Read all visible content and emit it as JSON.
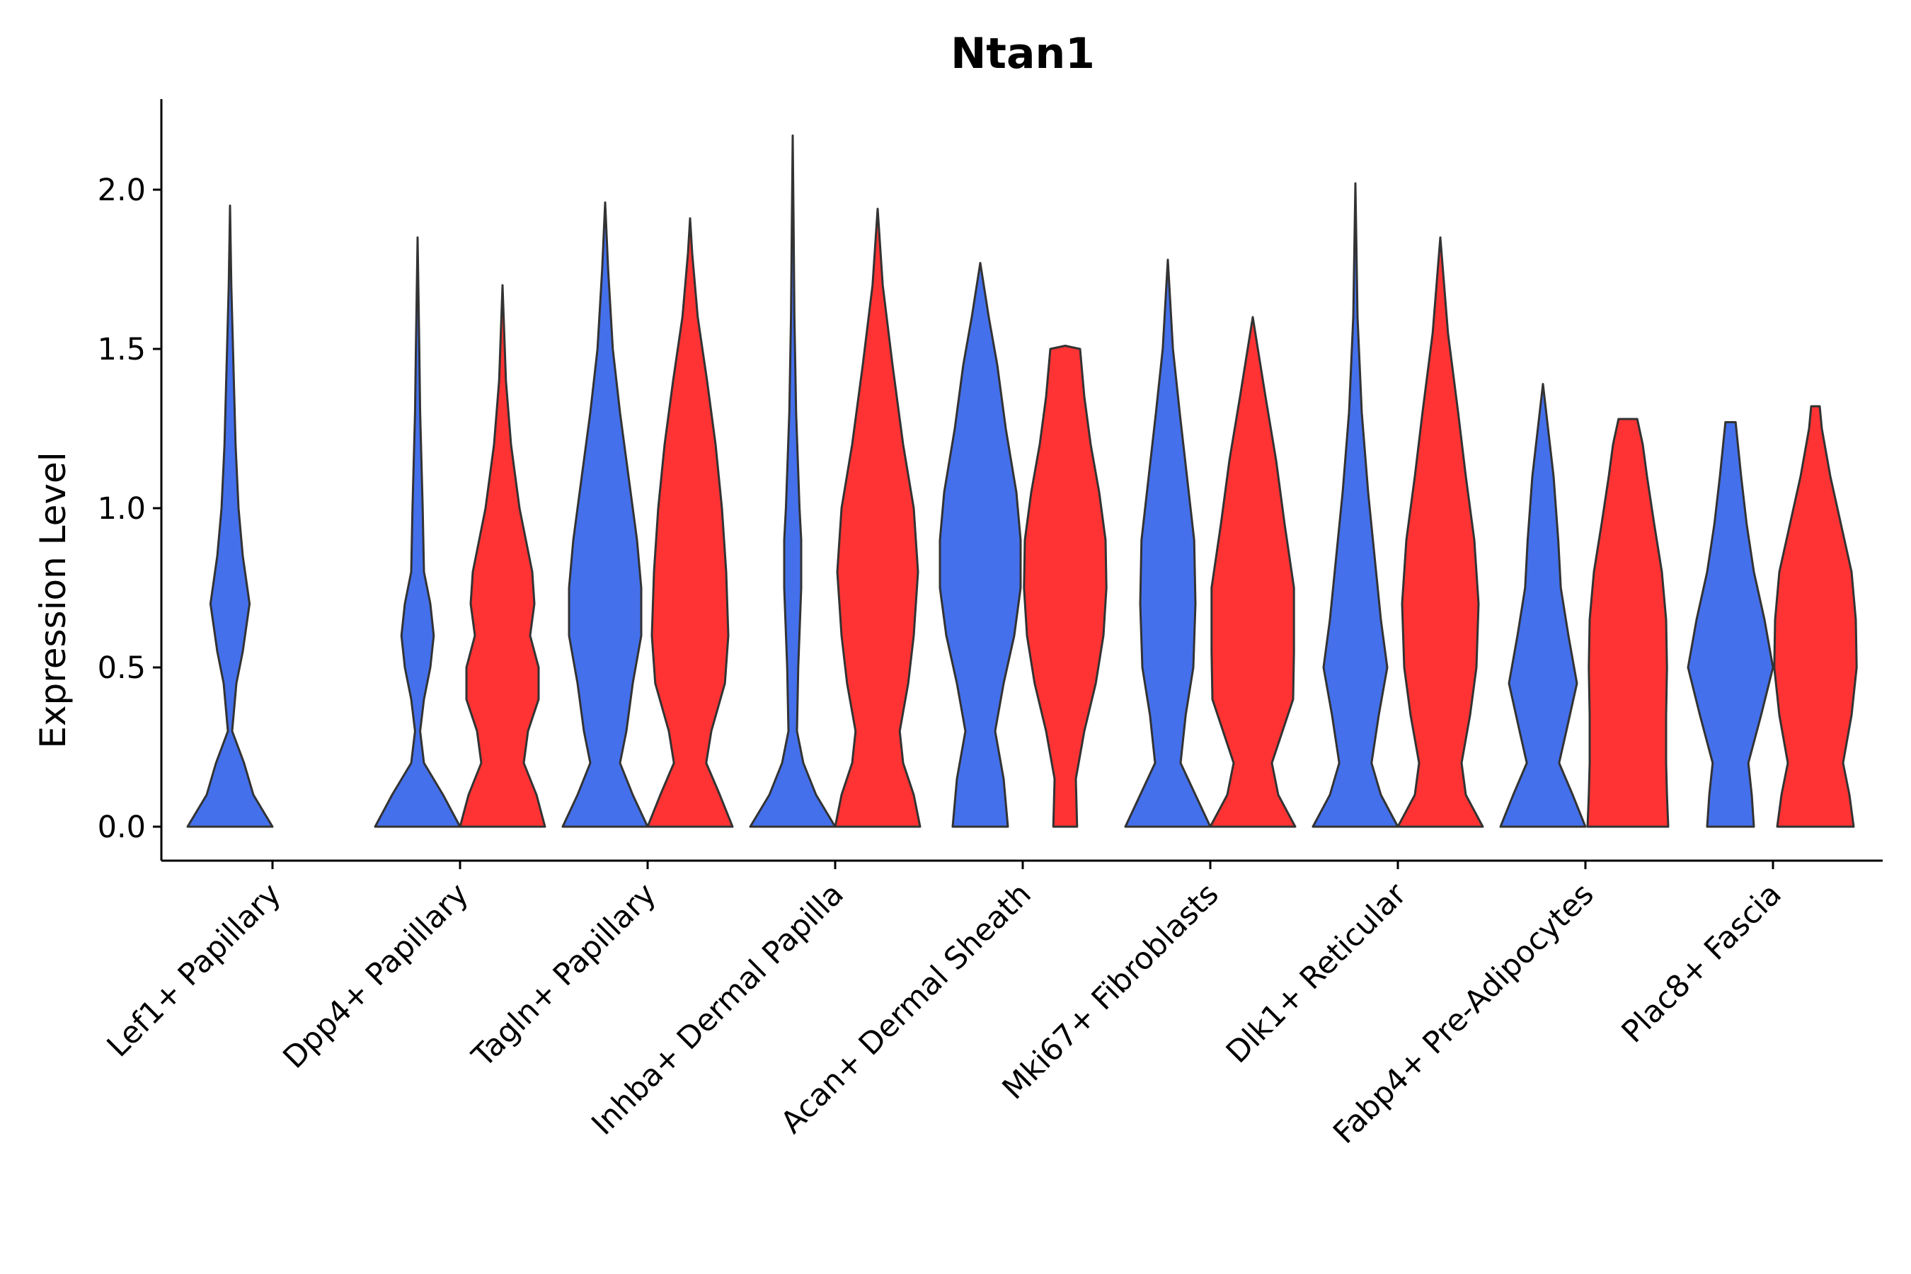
{
  "chart_data": {
    "type": "violin",
    "title": "Ntan1",
    "xlabel": "",
    "ylabel": "Expression Level",
    "ylim": [
      -0.1,
      2.28
    ],
    "yticks": [
      0.0,
      0.5,
      1.0,
      1.5,
      2.0
    ],
    "ytick_labels": [
      "0.0",
      "0.5",
      "1.0",
      "1.5",
      "2.0"
    ],
    "grid": false,
    "legend": "none",
    "colors": {
      "blue": "#4470ec",
      "red": "#ff3333",
      "outline": "#333333"
    },
    "categories": [
      "Lef1+ Papillary",
      "Dpp4+ Papillary",
      "Tagln+ Papillary",
      "Inhba+ Dermal Papilla",
      "Acan+ Dermal Sheath",
      "Mki67+ Fibroblasts",
      "Dlk1+ Reticular",
      "Fabp4+ Pre-Adipocytes",
      "Plac8+ Fascia"
    ],
    "violins": [
      {
        "category": "Lef1+ Papillary",
        "group": "blue",
        "max": 1.95,
        "profile": [
          [
            0,
            1.0
          ],
          [
            0.1,
            0.55
          ],
          [
            0.2,
            0.33
          ],
          [
            0.3,
            0.05
          ],
          [
            0.45,
            0.15
          ],
          [
            0.55,
            0.3
          ],
          [
            0.7,
            0.46
          ],
          [
            0.85,
            0.3
          ],
          [
            1.0,
            0.2
          ],
          [
            1.2,
            0.13
          ],
          [
            1.5,
            0.07
          ],
          [
            1.7,
            0.03
          ],
          [
            1.95,
            0
          ]
        ]
      },
      {
        "category": "Dpp4+ Papillary",
        "group": "blue",
        "max": 1.85,
        "profile": [
          [
            0,
            1.0
          ],
          [
            0.1,
            0.6
          ],
          [
            0.2,
            0.15
          ],
          [
            0.3,
            0.06
          ],
          [
            0.4,
            0.15
          ],
          [
            0.5,
            0.3
          ],
          [
            0.6,
            0.38
          ],
          [
            0.7,
            0.3
          ],
          [
            0.8,
            0.15
          ],
          [
            1.0,
            0.12
          ],
          [
            1.3,
            0.06
          ],
          [
            1.5,
            0.04
          ],
          [
            1.85,
            0
          ]
        ]
      },
      {
        "category": "Dpp4+ Papillary",
        "group": "red",
        "max": 1.7,
        "profile": [
          [
            0,
            1.0
          ],
          [
            0.1,
            0.8
          ],
          [
            0.2,
            0.5
          ],
          [
            0.3,
            0.6
          ],
          [
            0.4,
            0.85
          ],
          [
            0.5,
            0.85
          ],
          [
            0.6,
            0.65
          ],
          [
            0.7,
            0.75
          ],
          [
            0.8,
            0.7
          ],
          [
            1.0,
            0.4
          ],
          [
            1.2,
            0.2
          ],
          [
            1.4,
            0.08
          ],
          [
            1.7,
            0
          ]
        ]
      },
      {
        "category": "Tagln+ Papillary",
        "group": "blue",
        "max": 1.96,
        "profile": [
          [
            0,
            1.0
          ],
          [
            0.1,
            0.65
          ],
          [
            0.2,
            0.35
          ],
          [
            0.3,
            0.5
          ],
          [
            0.45,
            0.65
          ],
          [
            0.6,
            0.85
          ],
          [
            0.75,
            0.85
          ],
          [
            0.9,
            0.75
          ],
          [
            1.1,
            0.55
          ],
          [
            1.3,
            0.35
          ],
          [
            1.5,
            0.18
          ],
          [
            1.75,
            0.07
          ],
          [
            1.96,
            0
          ]
        ]
      },
      {
        "category": "Tagln+ Papillary",
        "group": "red",
        "max": 1.91,
        "profile": [
          [
            0,
            1.0
          ],
          [
            0.1,
            0.7
          ],
          [
            0.2,
            0.38
          ],
          [
            0.3,
            0.5
          ],
          [
            0.45,
            0.82
          ],
          [
            0.6,
            0.9
          ],
          [
            0.8,
            0.85
          ],
          [
            1.0,
            0.75
          ],
          [
            1.2,
            0.6
          ],
          [
            1.4,
            0.4
          ],
          [
            1.6,
            0.18
          ],
          [
            1.8,
            0.05
          ],
          [
            1.91,
            0
          ]
        ]
      },
      {
        "category": "Inhba+ Dermal Papilla",
        "group": "blue",
        "max": 2.17,
        "profile": [
          [
            0,
            1.0
          ],
          [
            0.1,
            0.55
          ],
          [
            0.2,
            0.25
          ],
          [
            0.3,
            0.1
          ],
          [
            0.5,
            0.13
          ],
          [
            0.75,
            0.2
          ],
          [
            0.9,
            0.2
          ],
          [
            1.0,
            0.16
          ],
          [
            1.3,
            0.08
          ],
          [
            1.6,
            0.04
          ],
          [
            1.9,
            0.02
          ],
          [
            2.17,
            0
          ]
        ]
      },
      {
        "category": "Inhba+ Dermal Papilla",
        "group": "red",
        "max": 1.94,
        "profile": [
          [
            0,
            1.0
          ],
          [
            0.1,
            0.85
          ],
          [
            0.2,
            0.6
          ],
          [
            0.3,
            0.52
          ],
          [
            0.45,
            0.72
          ],
          [
            0.6,
            0.85
          ],
          [
            0.8,
            0.95
          ],
          [
            1.0,
            0.85
          ],
          [
            1.2,
            0.6
          ],
          [
            1.45,
            0.35
          ],
          [
            1.7,
            0.12
          ],
          [
            1.94,
            0
          ]
        ]
      },
      {
        "category": "Acan+ Dermal Sheath",
        "group": "blue",
        "max": 1.77,
        "profile": [
          [
            0,
            0.65
          ],
          [
            0.15,
            0.55
          ],
          [
            0.3,
            0.35
          ],
          [
            0.45,
            0.55
          ],
          [
            0.6,
            0.8
          ],
          [
            0.75,
            0.95
          ],
          [
            0.9,
            0.95
          ],
          [
            1.05,
            0.85
          ],
          [
            1.25,
            0.6
          ],
          [
            1.45,
            0.4
          ],
          [
            1.6,
            0.2
          ],
          [
            1.77,
            0
          ]
        ]
      },
      {
        "category": "Acan+ Dermal Sheath",
        "group": "red",
        "max": 1.51,
        "profile": [
          [
            0,
            0.28
          ],
          [
            0.15,
            0.25
          ],
          [
            0.3,
            0.45
          ],
          [
            0.45,
            0.72
          ],
          [
            0.6,
            0.9
          ],
          [
            0.75,
            0.97
          ],
          [
            0.9,
            0.95
          ],
          [
            1.05,
            0.8
          ],
          [
            1.2,
            0.6
          ],
          [
            1.35,
            0.45
          ],
          [
            1.5,
            0.35
          ],
          [
            1.51,
            0
          ]
        ]
      },
      {
        "category": "Mki67+ Fibroblasts",
        "group": "blue",
        "max": 1.78,
        "profile": [
          [
            0,
            1.0
          ],
          [
            0.1,
            0.65
          ],
          [
            0.2,
            0.3
          ],
          [
            0.35,
            0.42
          ],
          [
            0.5,
            0.6
          ],
          [
            0.7,
            0.65
          ],
          [
            0.9,
            0.62
          ],
          [
            1.1,
            0.45
          ],
          [
            1.3,
            0.28
          ],
          [
            1.5,
            0.12
          ],
          [
            1.78,
            0
          ]
        ]
      },
      {
        "category": "Mki67+ Fibroblasts",
        "group": "red",
        "max": 1.61,
        "profile": [
          [
            0,
            1.0
          ],
          [
            0.1,
            0.6
          ],
          [
            0.2,
            0.45
          ],
          [
            0.3,
            0.7
          ],
          [
            0.4,
            0.95
          ],
          [
            0.55,
            0.97
          ],
          [
            0.75,
            0.97
          ],
          [
            0.95,
            0.75
          ],
          [
            1.15,
            0.55
          ],
          [
            1.35,
            0.3
          ],
          [
            1.6,
            0
          ]
        ]
      },
      {
        "category": "Dlk1+ Reticular",
        "group": "blue",
        "max": 2.02,
        "profile": [
          [
            0,
            1.0
          ],
          [
            0.1,
            0.6
          ],
          [
            0.2,
            0.38
          ],
          [
            0.35,
            0.55
          ],
          [
            0.5,
            0.75
          ],
          [
            0.65,
            0.6
          ],
          [
            0.85,
            0.45
          ],
          [
            1.05,
            0.3
          ],
          [
            1.3,
            0.15
          ],
          [
            1.6,
            0.05
          ],
          [
            2.02,
            0
          ]
        ]
      },
      {
        "category": "Dlk1+ Reticular",
        "group": "red",
        "max": 1.85,
        "profile": [
          [
            0,
            1.0
          ],
          [
            0.1,
            0.6
          ],
          [
            0.2,
            0.5
          ],
          [
            0.35,
            0.7
          ],
          [
            0.5,
            0.85
          ],
          [
            0.7,
            0.9
          ],
          [
            0.9,
            0.8
          ],
          [
            1.1,
            0.6
          ],
          [
            1.3,
            0.42
          ],
          [
            1.55,
            0.18
          ],
          [
            1.85,
            0
          ]
        ]
      },
      {
        "category": "Fabp4+ Pre-Adipocytes",
        "group": "blue",
        "max": 1.39,
        "profile": [
          [
            0,
            1.0
          ],
          [
            0.1,
            0.7
          ],
          [
            0.2,
            0.38
          ],
          [
            0.3,
            0.55
          ],
          [
            0.45,
            0.8
          ],
          [
            0.6,
            0.6
          ],
          [
            0.75,
            0.42
          ],
          [
            0.9,
            0.36
          ],
          [
            1.1,
            0.25
          ],
          [
            1.25,
            0.12
          ],
          [
            1.39,
            0
          ]
        ]
      },
      {
        "category": "Fabp4+ Pre-Adipocytes",
        "group": "red",
        "max": 1.28,
        "profile": [
          [
            0,
            0.95
          ],
          [
            0.1,
            0.92
          ],
          [
            0.2,
            0.9
          ],
          [
            0.35,
            0.9
          ],
          [
            0.5,
            0.92
          ],
          [
            0.65,
            0.9
          ],
          [
            0.8,
            0.8
          ],
          [
            0.95,
            0.62
          ],
          [
            1.1,
            0.45
          ],
          [
            1.2,
            0.35
          ],
          [
            1.28,
            0.22
          ],
          [
            1.28,
            0
          ]
        ]
      },
      {
        "category": "Plac8+ Fascia",
        "group": "blue",
        "max": 1.27,
        "profile": [
          [
            0,
            0.55
          ],
          [
            0.1,
            0.5
          ],
          [
            0.2,
            0.42
          ],
          [
            0.35,
            0.72
          ],
          [
            0.5,
            1.0
          ],
          [
            0.65,
            0.8
          ],
          [
            0.8,
            0.55
          ],
          [
            0.95,
            0.38
          ],
          [
            1.1,
            0.25
          ],
          [
            1.27,
            0.12
          ],
          [
            1.27,
            0
          ]
        ]
      },
      {
        "category": "Plac8+ Fascia",
        "group": "red",
        "max": 1.32,
        "profile": [
          [
            0,
            0.9
          ],
          [
            0.1,
            0.8
          ],
          [
            0.2,
            0.65
          ],
          [
            0.35,
            0.85
          ],
          [
            0.5,
            0.97
          ],
          [
            0.65,
            0.95
          ],
          [
            0.8,
            0.85
          ],
          [
            0.95,
            0.6
          ],
          [
            1.1,
            0.35
          ],
          [
            1.25,
            0.15
          ],
          [
            1.32,
            0.1
          ],
          [
            1.32,
            0
          ]
        ]
      }
    ]
  }
}
